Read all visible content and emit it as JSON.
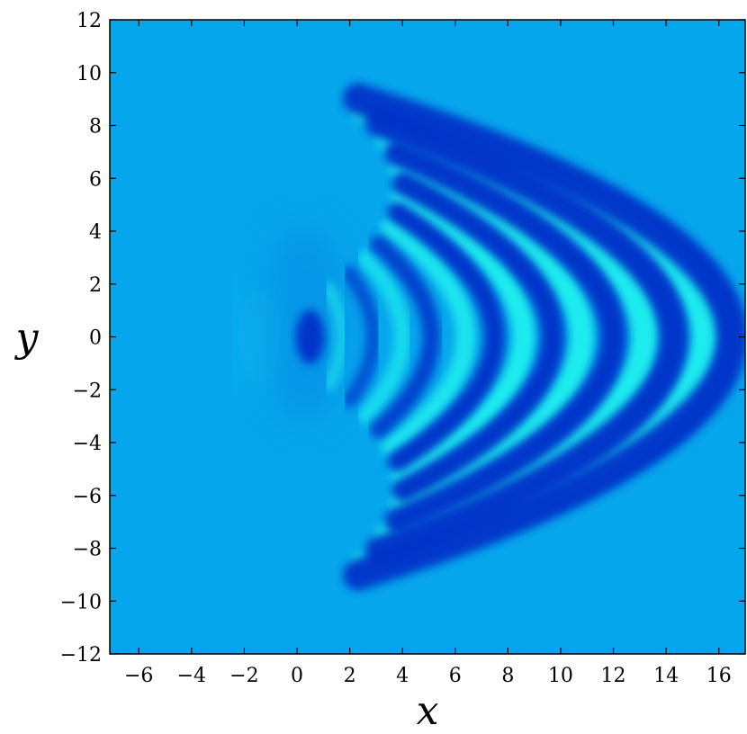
{
  "chart_data": {
    "type": "heatmap",
    "title": "",
    "xlabel": "x",
    "ylabel": "y",
    "xlim": [
      -7.1,
      17
    ],
    "ylim": [
      -12,
      12
    ],
    "x_ticks": [
      {
        "value": -6,
        "label": "−6"
      },
      {
        "value": -4,
        "label": "−4"
      },
      {
        "value": -2,
        "label": "−2"
      },
      {
        "value": 0,
        "label": "0"
      },
      {
        "value": 2,
        "label": "2"
      },
      {
        "value": 4,
        "label": "4"
      },
      {
        "value": 6,
        "label": "6"
      },
      {
        "value": 8,
        "label": "8"
      },
      {
        "value": 10,
        "label": "10"
      },
      {
        "value": 12,
        "label": "12"
      },
      {
        "value": 14,
        "label": "14"
      },
      {
        "value": 16,
        "label": "16"
      }
    ],
    "y_ticks": [
      {
        "value": 12,
        "label": "12"
      },
      {
        "value": 10,
        "label": "10"
      },
      {
        "value": 8,
        "label": "8"
      },
      {
        "value": 6,
        "label": "6"
      },
      {
        "value": 4,
        "label": "4"
      },
      {
        "value": 2,
        "label": "2"
      },
      {
        "value": 0,
        "label": "0"
      },
      {
        "value": -2,
        "label": "−2"
      },
      {
        "value": -4,
        "label": "−4"
      },
      {
        "value": -6,
        "label": "−6"
      },
      {
        "value": -8,
        "label": "−8"
      },
      {
        "value": -10,
        "label": "−10"
      },
      {
        "value": -12,
        "label": "−12"
      }
    ],
    "background_color": "#06a6ec",
    "colors": {
      "trough": "#0030c8",
      "crest": "#1ff0ee"
    },
    "grid": false,
    "wave_pattern": {
      "source": [
        0.5,
        0
      ],
      "description_values": {
        "dark_fronts_x_at_y0": [
          0.5,
          2.9,
          5.1,
          7.5,
          9.7,
          12.0,
          14.3,
          16.5
        ],
        "bright_fronts_x_at_y0": [
          -1.3,
          1.7,
          4.0,
          6.4,
          8.6,
          10.8,
          13.2,
          15.5
        ]
      }
    }
  }
}
